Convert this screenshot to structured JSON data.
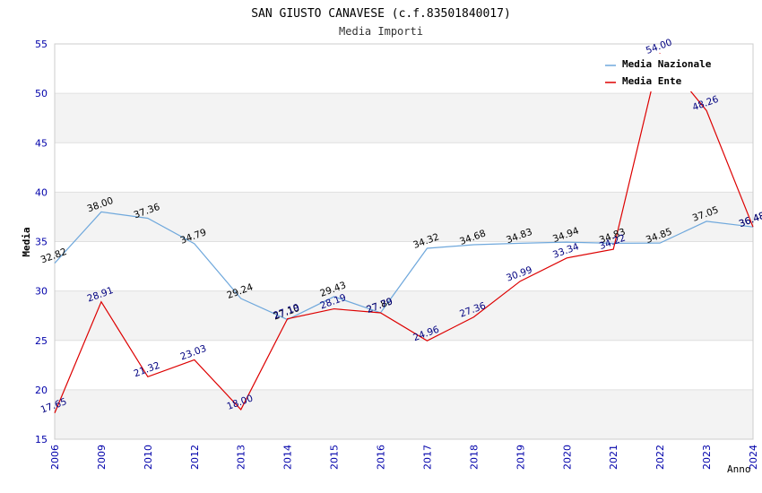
{
  "chart_data": {
    "type": "line",
    "title": "SAN GIUSTO CANAVESE (c.f.83501840017)",
    "subtitle": "Media Importi",
    "xlabel": "Anno",
    "ylabel": "Media",
    "ylim": [
      15,
      55
    ],
    "yticks": [
      15,
      20,
      25,
      30,
      35,
      40,
      45,
      50,
      55
    ],
    "categories": [
      "2006",
      "2009",
      "2010",
      "2012",
      "2013",
      "2014",
      "2015",
      "2016",
      "2017",
      "2018",
      "2019",
      "2020",
      "2021",
      "2022",
      "2023",
      "2024"
    ],
    "grid": true,
    "legend_position": "top-right",
    "series": [
      {
        "name": "Media Nazionale",
        "color": "#6fa8dc",
        "label_color": "#000000",
        "values": [
          32.82,
          38.0,
          37.36,
          34.79,
          29.24,
          27.1,
          29.43,
          27.8,
          34.32,
          34.68,
          34.83,
          34.94,
          34.83,
          34.85,
          37.05,
          36.48
        ]
      },
      {
        "name": "Media Ente",
        "color": "#dd0000",
        "label_color": "#000080",
        "values": [
          17.65,
          28.91,
          21.32,
          23.03,
          18.0,
          27.19,
          28.19,
          27.79,
          24.96,
          27.36,
          30.99,
          33.34,
          34.22,
          54.0,
          48.26,
          36.48
        ]
      }
    ]
  }
}
